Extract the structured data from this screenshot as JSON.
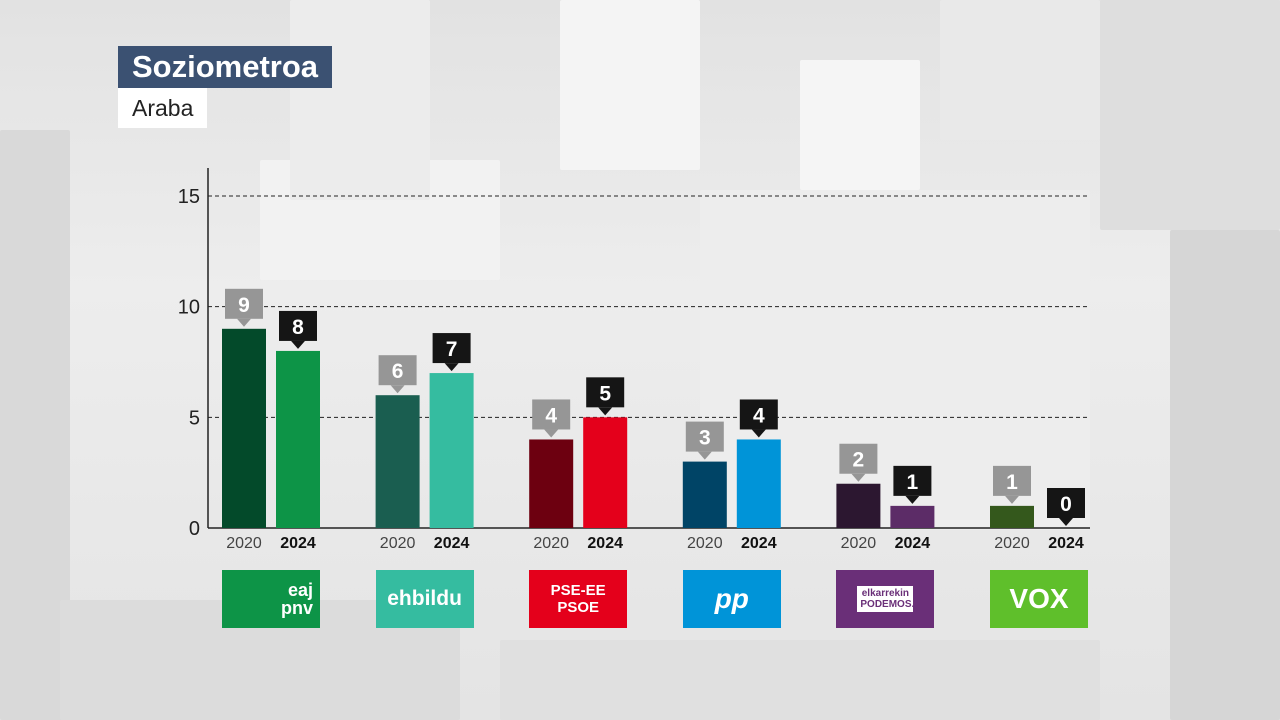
{
  "header": {
    "title": "Soziometroa",
    "subtitle": "Araba"
  },
  "chart_data": {
    "type": "bar",
    "ylim": [
      0,
      15
    ],
    "yticks": [
      0,
      5,
      10,
      15
    ],
    "grid": true,
    "years": [
      "2020",
      "2024"
    ],
    "parties": [
      {
        "logo_label": "eaj pnv",
        "values": [
          9,
          8
        ],
        "colors": [
          "#034a2a",
          "#0d9447"
        ],
        "logo_color": "#0d9447"
      },
      {
        "logo_label": "ehbildu",
        "values": [
          6,
          7
        ],
        "colors": [
          "#1a5e50",
          "#35bca0"
        ],
        "logo_color": "#35bca0"
      },
      {
        "logo_label": "PSE-EE PSOE",
        "values": [
          4,
          5
        ],
        "colors": [
          "#6d0010",
          "#e4001b"
        ],
        "logo_color": "#e4001b"
      },
      {
        "logo_label": "pp",
        "values": [
          3,
          4
        ],
        "colors": [
          "#004466",
          "#0094d8"
        ],
        "logo_color": "#0094d8"
      },
      {
        "logo_label": "elkarrekin PODEMOS.",
        "values": [
          2,
          1
        ],
        "colors": [
          "#2c1730",
          "#5c2c67"
        ],
        "logo_color": "#6a2f78"
      },
      {
        "logo_label": "VOX",
        "values": [
          1,
          0
        ],
        "colors": [
          "#34581c",
          "#5fbf2b"
        ],
        "logo_color": "#5fbf2b"
      }
    ],
    "label_colors": [
      "#969696",
      "#151515"
    ]
  }
}
